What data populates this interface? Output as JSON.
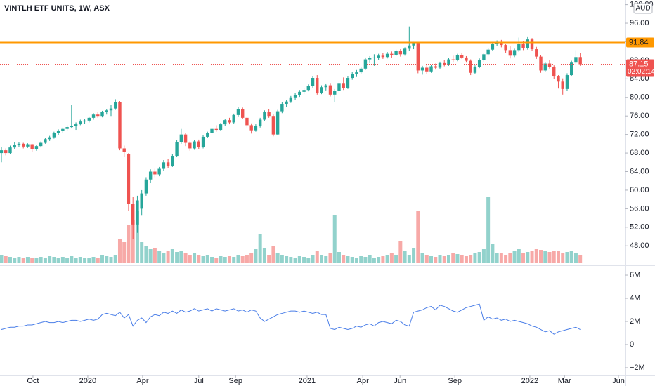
{
  "chart_data": [
    {
      "type": "candlestick",
      "title": "VINTLH ETF UNITS, 1W, ASX",
      "currency": "AUD",
      "countdown": "02:02:14",
      "up_color": "#26a69a",
      "down_color": "#ef5350",
      "grid": false,
      "hline": {
        "value": 91.84,
        "color": "#ff9800"
      },
      "ylim": [
        43.8,
        101.0
      ],
      "yticks": [
        {
          "value": 48,
          "label": "48.00"
        },
        {
          "value": 52,
          "label": "52.00"
        },
        {
          "value": 56,
          "label": "56.00"
        },
        {
          "value": 60,
          "label": "60.00"
        },
        {
          "value": 64,
          "label": "64.00"
        },
        {
          "value": 68,
          "label": "68.00"
        },
        {
          "value": 72,
          "label": "72.00"
        },
        {
          "value": 76,
          "label": "76.00"
        },
        {
          "value": 80,
          "label": "80.00"
        },
        {
          "value": 84,
          "label": "84.00"
        },
        {
          "value": 88,
          "label": "88.00"
        },
        {
          "value": 92,
          "label": "92.00"
        },
        {
          "value": 96,
          "label": "96.00"
        },
        {
          "value": 100,
          "label": "100.00"
        }
      ],
      "xticks": [
        {
          "value": 7.2,
          "label": "Oct"
        },
        {
          "value": 19.7,
          "label": "2020"
        },
        {
          "value": 32.2,
          "label": "Apr"
        },
        {
          "value": 45.0,
          "label": "Jul"
        },
        {
          "value": 53.4,
          "label": "Sep"
        },
        {
          "value": 69.7,
          "label": "2021"
        },
        {
          "value": 82.4,
          "label": "Apr"
        },
        {
          "value": 90.9,
          "label": "Jun"
        },
        {
          "value": 103.4,
          "label": "Sep"
        },
        {
          "value": 120.5,
          "label": "2022"
        },
        {
          "value": 128.4,
          "label": "Mar"
        },
        {
          "value": 140.7,
          "label": "Jun"
        }
      ],
      "ohlc": [
        [
          68.0,
          69.3,
          66.0,
          68.6
        ],
        [
          68.6,
          69.0,
          67.5,
          68.0
        ],
        [
          68.0,
          69.6,
          67.8,
          69.2
        ],
        [
          69.2,
          70.3,
          68.9,
          69.8
        ],
        [
          69.8,
          70.4,
          69.3,
          70.0
        ],
        [
          70.0,
          70.2,
          69.0,
          69.4
        ],
        [
          69.4,
          70.1,
          69.1,
          69.9
        ],
        [
          69.9,
          70.0,
          68.3,
          68.8
        ],
        [
          68.8,
          69.7,
          68.5,
          69.5
        ],
        [
          69.5,
          70.5,
          69.2,
          70.2
        ],
        [
          70.2,
          71.2,
          70.0,
          71.0
        ],
        [
          71.0,
          71.7,
          70.6,
          71.4
        ],
        [
          71.4,
          72.6,
          71.1,
          72.3
        ],
        [
          72.3,
          73.1,
          71.9,
          72.8
        ],
        [
          72.8,
          73.5,
          72.4,
          73.2
        ],
        [
          73.2,
          74.0,
          72.9,
          73.6
        ],
        [
          73.6,
          78.3,
          73.3,
          73.9
        ],
        [
          73.9,
          74.6,
          73.0,
          74.2
        ],
        [
          74.2,
          75.2,
          74.0,
          74.8
        ],
        [
          74.8,
          75.4,
          74.3,
          75.0
        ],
        [
          75.0,
          75.9,
          74.6,
          75.6
        ],
        [
          75.6,
          76.6,
          75.2,
          76.3
        ],
        [
          76.3,
          76.8,
          75.6,
          76.0
        ],
        [
          76.0,
          77.1,
          75.7,
          76.8
        ],
        [
          76.8,
          77.5,
          76.3,
          77.2
        ],
        [
          77.2,
          78.3,
          76.0,
          77.6
        ],
        [
          77.6,
          79.6,
          77.3,
          79.0
        ],
        [
          79.0,
          79.2,
          68.6,
          69.0
        ],
        [
          69.0,
          69.6,
          67.2,
          68.3
        ],
        [
          67.8,
          68.0,
          55.5,
          57.0
        ],
        [
          57.0,
          58.5,
          49.5,
          52.6
        ],
        [
          52.6,
          58.8,
          50.8,
          57.8
        ],
        [
          56.0,
          60.0,
          54.5,
          59.3
        ],
        [
          59.3,
          62.8,
          58.8,
          62.3
        ],
        [
          62.3,
          64.5,
          61.5,
          64.0
        ],
        [
          64.0,
          64.6,
          62.8,
          63.4
        ],
        [
          63.4,
          65.0,
          63.0,
          64.6
        ],
        [
          64.6,
          66.5,
          64.2,
          66.0
        ],
        [
          66.0,
          66.8,
          64.8,
          65.2
        ],
        [
          65.2,
          67.8,
          65.0,
          67.4
        ],
        [
          67.4,
          70.8,
          67.1,
          70.4
        ],
        [
          70.4,
          73.2,
          70.0,
          72.0
        ],
        [
          72.0,
          72.4,
          69.5,
          70.2
        ],
        [
          70.2,
          70.5,
          68.5,
          69.0
        ],
        [
          69.0,
          70.8,
          68.7,
          70.5
        ],
        [
          70.5,
          70.9,
          68.9,
          69.3
        ],
        [
          69.3,
          71.8,
          69.0,
          71.5
        ],
        [
          71.5,
          72.6,
          71.2,
          72.3
        ],
        [
          72.3,
          73.5,
          72.0,
          73.2
        ],
        [
          73.2,
          74.0,
          72.6,
          73.0
        ],
        [
          73.0,
          74.5,
          72.8,
          74.2
        ],
        [
          74.2,
          75.4,
          73.8,
          75.1
        ],
        [
          75.1,
          75.6,
          74.2,
          74.6
        ],
        [
          74.6,
          76.5,
          74.3,
          76.2
        ],
        [
          76.2,
          77.9,
          75.9,
          77.4
        ],
        [
          77.4,
          77.8,
          75.3,
          75.6
        ],
        [
          75.6,
          75.8,
          73.5,
          74.0
        ],
        [
          74.0,
          74.4,
          72.2,
          72.9
        ],
        [
          72.9,
          74.2,
          72.6,
          73.9
        ],
        [
          73.9,
          75.6,
          73.5,
          75.2
        ],
        [
          75.2,
          77.2,
          74.9,
          76.8
        ],
        [
          76.8,
          77.4,
          75.6,
          76.0
        ],
        [
          76.0,
          76.3,
          71.6,
          72.0
        ],
        [
          72.0,
          77.3,
          71.8,
          77.0
        ],
        [
          77.0,
          79.0,
          76.6,
          78.6
        ],
        [
          78.6,
          79.5,
          77.9,
          79.1
        ],
        [
          79.1,
          80.3,
          78.8,
          80.0
        ],
        [
          80.0,
          80.9,
          79.4,
          80.5
        ],
        [
          80.5,
          81.6,
          80.1,
          81.2
        ],
        [
          81.2,
          82.0,
          80.7,
          81.6
        ],
        [
          81.6,
          82.8,
          81.3,
          82.5
        ],
        [
          82.5,
          84.6,
          82.1,
          84.2
        ],
        [
          84.2,
          84.8,
          80.6,
          81.0
        ],
        [
          81.0,
          82.6,
          80.7,
          82.2
        ],
        [
          82.2,
          83.0,
          81.5,
          82.6
        ],
        [
          82.6,
          83.1,
          80.2,
          80.6
        ],
        [
          80.6,
          81.8,
          79.0,
          81.4
        ],
        [
          81.4,
          83.5,
          81.0,
          83.1
        ],
        [
          83.1,
          84.3,
          81.6,
          82.0
        ],
        [
          82.0,
          84.6,
          81.8,
          84.2
        ],
        [
          84.2,
          85.5,
          83.8,
          85.1
        ],
        [
          85.1,
          85.9,
          84.4,
          85.4
        ],
        [
          85.4,
          86.6,
          85.0,
          86.2
        ],
        [
          86.2,
          88.6,
          85.9,
          88.2
        ],
        [
          88.2,
          88.9,
          87.4,
          88.5
        ],
        [
          88.5,
          89.3,
          86.8,
          88.6
        ],
        [
          88.6,
          89.4,
          88.0,
          89.0
        ],
        [
          89.0,
          89.6,
          88.3,
          88.7
        ],
        [
          88.7,
          89.8,
          88.4,
          89.4
        ],
        [
          89.4,
          89.9,
          88.6,
          89.2
        ],
        [
          89.2,
          90.3,
          88.9,
          90.0
        ],
        [
          90.0,
          90.4,
          88.8,
          89.3
        ],
        [
          89.3,
          90.8,
          89.0,
          90.5
        ],
        [
          90.5,
          95.3,
          90.0,
          91.2
        ],
        [
          91.2,
          92.0,
          90.4,
          91.8
        ],
        [
          91.8,
          92.0,
          85.2,
          85.8
        ],
        [
          85.8,
          86.8,
          84.9,
          86.4
        ],
        [
          86.4,
          86.9,
          85.0,
          85.6
        ],
        [
          85.6,
          87.0,
          85.3,
          86.7
        ],
        [
          86.7,
          87.3,
          86.0,
          86.4
        ],
        [
          86.4,
          87.7,
          86.1,
          87.4
        ],
        [
          87.4,
          88.1,
          86.7,
          87.0
        ],
        [
          87.0,
          88.5,
          86.8,
          88.2
        ],
        [
          88.2,
          89.0,
          87.5,
          88.0
        ],
        [
          88.0,
          89.4,
          87.8,
          89.1
        ],
        [
          89.1,
          89.6,
          88.3,
          88.6
        ],
        [
          88.6,
          88.9,
          87.5,
          87.9
        ],
        [
          87.9,
          88.2,
          84.8,
          85.3
        ],
        [
          85.3,
          86.9,
          85.0,
          86.6
        ],
        [
          86.6,
          88.4,
          86.3,
          88.0
        ],
        [
          88.0,
          89.6,
          87.7,
          89.3
        ],
        [
          89.3,
          90.6,
          89.0,
          90.3
        ],
        [
          90.3,
          92.0,
          90.0,
          91.6
        ],
        [
          91.6,
          92.3,
          91.1,
          92.0
        ],
        [
          92.0,
          92.4,
          90.8,
          91.3
        ],
        [
          91.3,
          91.6,
          89.6,
          90.2
        ],
        [
          90.2,
          91.0,
          88.4,
          89.0
        ],
        [
          89.0,
          90.5,
          88.7,
          90.2
        ],
        [
          90.2,
          92.9,
          89.8,
          91.5
        ],
        [
          91.5,
          92.1,
          90.2,
          90.6
        ],
        [
          90.6,
          93.0,
          90.3,
          92.5
        ],
        [
          92.5,
          92.8,
          90.0,
          90.4
        ],
        [
          90.4,
          90.9,
          88.3,
          88.8
        ],
        [
          88.8,
          89.1,
          85.3,
          85.8
        ],
        [
          85.8,
          87.6,
          85.5,
          87.3
        ],
        [
          87.3,
          88.1,
          86.2,
          86.6
        ],
        [
          86.6,
          86.9,
          84.0,
          84.5
        ],
        [
          84.5,
          84.8,
          81.9,
          83.4
        ],
        [
          83.4,
          84.1,
          80.6,
          81.8
        ],
        [
          81.8,
          85.2,
          81.4,
          84.8
        ],
        [
          84.8,
          87.9,
          84.5,
          87.5
        ],
        [
          87.5,
          90.2,
          87.1,
          88.7
        ],
        [
          88.7,
          89.6,
          86.8,
          87.15
        ]
      ],
      "volume": [
        12,
        10,
        9,
        8,
        9,
        8,
        9,
        8,
        7,
        9,
        8,
        10,
        9,
        8,
        9,
        7,
        10,
        8,
        9,
        8,
        7,
        9,
        8,
        12,
        10,
        9,
        12,
        35,
        30,
        55,
        62,
        75,
        30,
        25,
        20,
        22,
        18,
        15,
        18,
        20,
        16,
        18,
        15,
        12,
        14,
        12,
        10,
        11,
        9,
        8,
        10,
        9,
        10,
        9,
        11,
        10,
        12,
        15,
        20,
        42,
        22,
        12,
        25,
        14,
        11,
        10,
        9,
        8,
        10,
        9,
        8,
        11,
        18,
        12,
        10,
        14,
        68,
        16,
        12,
        10,
        9,
        8,
        10,
        9,
        11,
        8,
        9,
        10,
        12,
        14,
        12,
        32,
        18,
        12,
        22,
        75,
        14,
        12,
        10,
        9,
        11,
        10,
        12,
        14,
        13,
        11,
        10,
        12,
        14,
        16,
        20,
        95,
        28,
        15,
        14,
        12,
        15,
        18,
        20,
        14,
        16,
        18,
        20,
        19,
        17,
        16,
        18,
        17,
        15,
        16,
        17,
        14,
        12
      ]
    },
    {
      "type": "line",
      "color": "#4a7ee8",
      "grid": false,
      "ylim": [
        -2670000,
        6730000
      ],
      "yticks": [
        {
          "value": -2000000,
          "label": "−2M"
        },
        0,
        {
          "value": 2000000,
          "label": "2M"
        },
        {
          "value": 4000000,
          "label": "4M"
        },
        {
          "value": 6000000,
          "label": "6M"
        }
      ],
      "values": [
        1300000,
        1400000,
        1500000,
        1500000,
        1600000,
        1600000,
        1700000,
        1700000,
        1800000,
        1900000,
        2000000,
        1900000,
        1900000,
        2000000,
        1900000,
        2000000,
        2100000,
        2100000,
        2000000,
        2100000,
        2200000,
        2100000,
        2200000,
        2600000,
        2700000,
        2600000,
        2500000,
        2800000,
        2300000,
        2600000,
        1600000,
        2100000,
        2300000,
        1900000,
        2400000,
        2600000,
        2500000,
        2800000,
        2700000,
        2900000,
        2700000,
        3000000,
        2800000,
        2900000,
        3100000,
        2900000,
        3000000,
        3100000,
        2900000,
        3100000,
        3000000,
        2900000,
        3000000,
        3100000,
        2900000,
        3000000,
        2800000,
        3000000,
        2900000,
        2300000,
        2000000,
        2200000,
        2400000,
        2600000,
        2700000,
        2800000,
        2900000,
        2900000,
        2800000,
        2900000,
        2800000,
        2700000,
        2800000,
        2600000,
        2600000,
        1400000,
        1300000,
        1500000,
        1400000,
        1300000,
        1400000,
        1600000,
        1500000,
        1700000,
        1800000,
        1600000,
        1900000,
        2000000,
        1900000,
        1800000,
        2100000,
        2000000,
        1700000,
        1600000,
        2800000,
        2900000,
        3000000,
        3200000,
        3300000,
        3000000,
        3400000,
        3300000,
        3100000,
        2900000,
        2800000,
        3000000,
        3200000,
        3300000,
        3400000,
        3500000,
        2100000,
        2400000,
        2200000,
        2300000,
        2100000,
        2200000,
        2000000,
        2100000,
        2000000,
        1900000,
        1800000,
        1600000,
        1500000,
        1300000,
        1100000,
        1200000,
        900000,
        1100000,
        1200000,
        1300000,
        1400000,
        1500000,
        1300000
      ]
    }
  ]
}
